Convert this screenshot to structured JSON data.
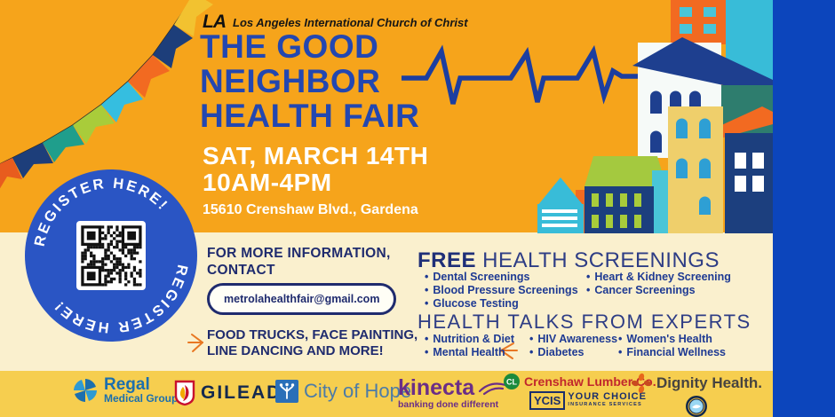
{
  "header": {
    "church_logo": "LA",
    "church_name": "Los Angeles International Church of Christ",
    "title_line1": "THE GOOD",
    "title_line2": "NEIGHBOR",
    "title_line3": "HEALTH FAIR",
    "date_line1": "SAT, MARCH 14TH",
    "date_line2": "10AM-4PM",
    "address": "15610 Crenshaw Blvd., Gardena"
  },
  "register": {
    "label": "REGISTER HERE!"
  },
  "contact": {
    "heading_line1": "FOR MORE INFORMATION,",
    "heading_line2": "CONTACT",
    "email": "metrolahealthfair@gmail.com",
    "extras_line1": "FOOD TRUCKS, FACE PAINTING,",
    "extras_line2": "LINE DANCING AND MORE!"
  },
  "screenings": {
    "heading_bold": "FREE",
    "heading_rest": " HEALTH SCREENINGS",
    "col1": [
      "Dental Screenings",
      "Blood Pressure Screenings",
      "Glucose Testing"
    ],
    "col2": [
      "Heart & Kidney Screening",
      "Cancer Screenings"
    ]
  },
  "talks": {
    "heading": "HEALTH TALKS FROM EXPERTS",
    "col1": [
      "Nutrition & Diet",
      "Mental Health"
    ],
    "col2": [
      "HIV Awareness",
      "Diabetes"
    ],
    "col3": [
      "Women's Health",
      "Financial Wellness"
    ]
  },
  "sponsors": {
    "regal": {
      "name": "Regal",
      "sub": "Medical Group"
    },
    "gilead": {
      "name": "GILEAD"
    },
    "city_of_hope": {
      "name": "City of Hope"
    },
    "kinecta": {
      "name": "kinecta",
      "tagline": "banking done different"
    },
    "crenshaw": {
      "name": "Crenshaw Lumber Co.",
      "ycis": "YCIS",
      "ycis_line1": "YOUR CHOICE",
      "ycis_line2": "INSURANCE SERVICES"
    },
    "dignity": {
      "name": "Dignity Health."
    }
  },
  "colors": {
    "background_orange": "#F6A41B",
    "background_cream": "#FAF0CE",
    "sponsor_strip_yellow": "#F6CE4F",
    "border_blue": "#0C45BC",
    "title_blue": "#2347B0",
    "text_navy": "#1F2B6E",
    "register_badge_blue": "#2A55C4"
  }
}
